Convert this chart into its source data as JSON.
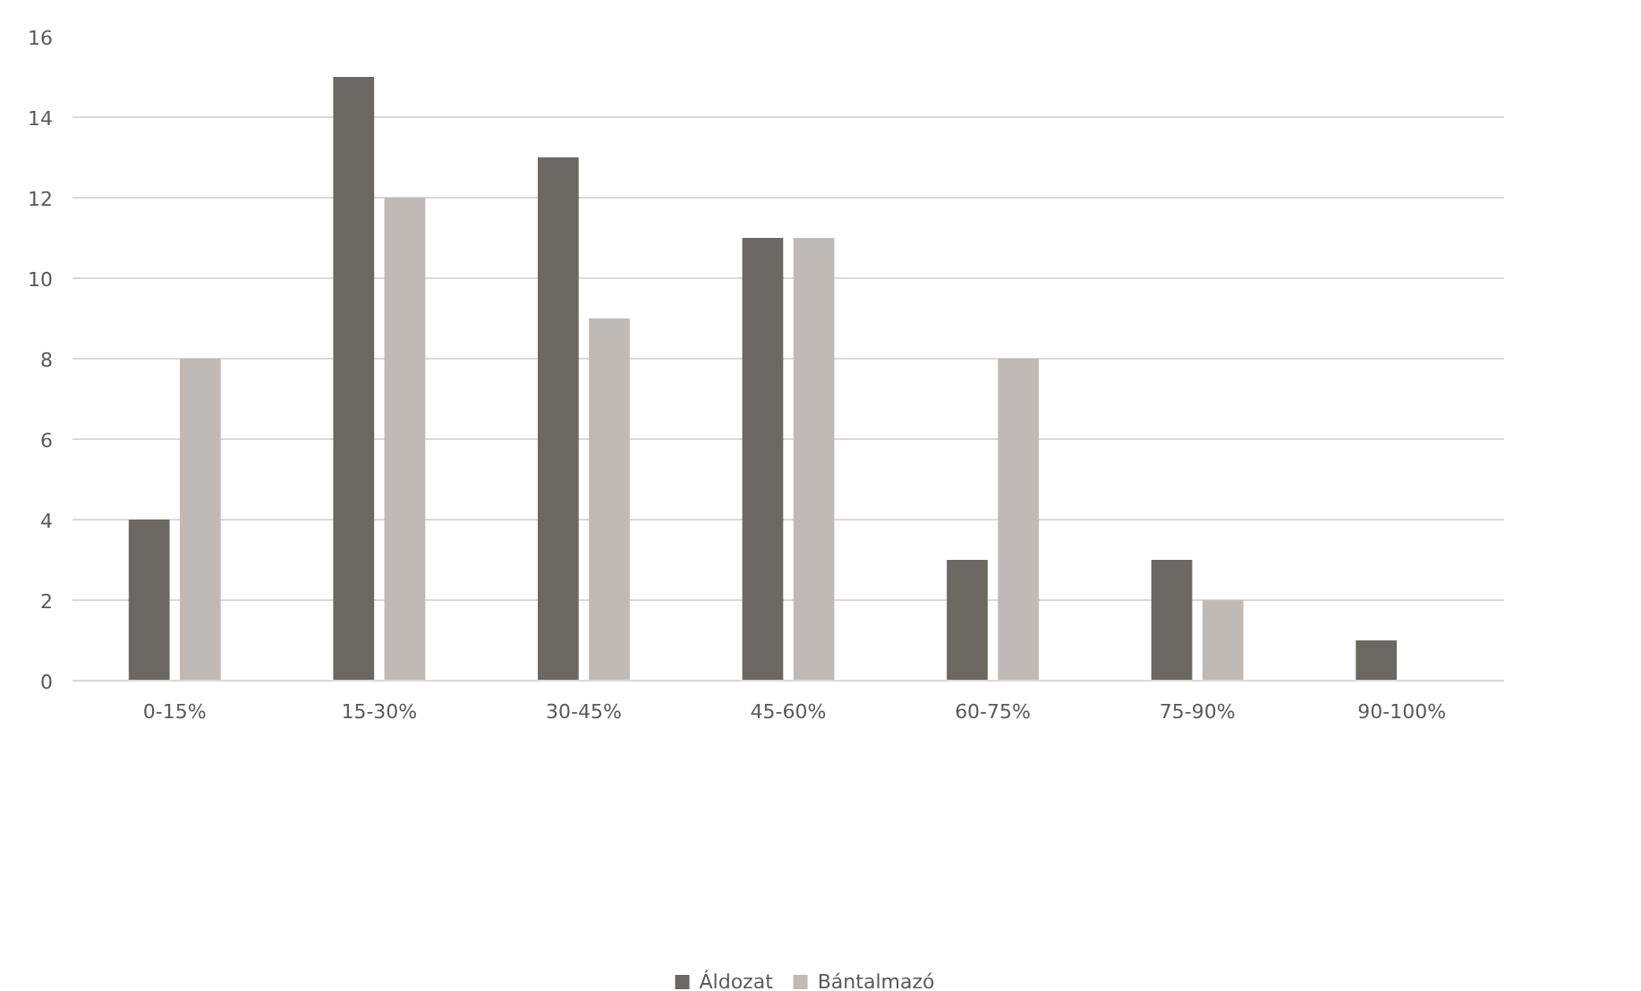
{
  "chart_data": {
    "type": "bar",
    "categories": [
      "0-15%",
      "15-30%",
      "30-45%",
      "45-60%",
      "60-75%",
      "75-90%",
      "90-100%"
    ],
    "series": [
      {
        "name": "Áldozat",
        "color": "#6b6762",
        "values": [
          4,
          15,
          13,
          11,
          3,
          3,
          1
        ]
      },
      {
        "name": "Bántalmazó",
        "color": "#c0bab7",
        "values": [
          8,
          12,
          9,
          11,
          8,
          2,
          0
        ]
      }
    ],
    "ylim": [
      0,
      16
    ],
    "yticks": [
      0,
      2,
      4,
      6,
      8,
      10,
      12,
      14,
      16
    ],
    "grid": "y",
    "legend": "bottom"
  }
}
